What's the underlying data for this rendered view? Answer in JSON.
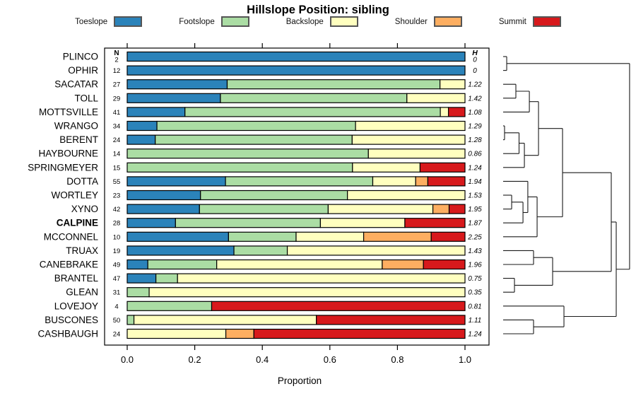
{
  "title": "Hillslope Position: sibling",
  "x_axis_label": "Proportion",
  "n_column_header": "N",
  "h_column_header": "H",
  "colors": {
    "toeslope": "#2B83BA",
    "footslope": "#ABDDA4",
    "backslope": "#FFFFBF",
    "shoulder": "#FDAE61",
    "summit": "#D7191C"
  },
  "legend": [
    {
      "label": "Toeslope",
      "color": "#2B83BA"
    },
    {
      "label": "Footslope",
      "color": "#ABDDA4"
    },
    {
      "label": "Backslope",
      "color": "#FFFFBF"
    },
    {
      "label": "Shoulder",
      "color": "#FDAE61"
    },
    {
      "label": "Summit",
      "color": "#D7191C"
    }
  ],
  "chart_data": {
    "type": "bar",
    "stacked": true,
    "orientation": "horizontal",
    "title": "Hillslope Position: sibling",
    "xlabel": "Proportion",
    "xlim": [
      0,
      1
    ],
    "xtick_labels": [
      "0.0",
      "0.2",
      "0.4",
      "0.6",
      "0.8",
      "1.0"
    ],
    "xtick_values": [
      0,
      0.2,
      0.4,
      0.6,
      0.8,
      1.0
    ],
    "series_names": [
      "Toeslope",
      "Footslope",
      "Backslope",
      "Shoulder",
      "Summit"
    ],
    "rows": [
      {
        "label": "PLINCO",
        "n": 2,
        "h": "0",
        "bold": false,
        "values": [
          1,
          0,
          0,
          0,
          0
        ]
      },
      {
        "label": "OPHIR",
        "n": 12,
        "h": "0",
        "bold": false,
        "values": [
          1,
          0,
          0,
          0,
          0
        ]
      },
      {
        "label": "SACATAR",
        "n": 27,
        "h": "1.22",
        "bold": false,
        "values": [
          0.296,
          0.63,
          0.074,
          0,
          0
        ]
      },
      {
        "label": "TOLL",
        "n": 29,
        "h": "1.42",
        "bold": false,
        "values": [
          0.276,
          0.552,
          0.172,
          0,
          0
        ]
      },
      {
        "label": "MOTTSVILLE",
        "n": 41,
        "h": "1.08",
        "bold": false,
        "values": [
          0.171,
          0.756,
          0.024,
          0,
          0.049
        ]
      },
      {
        "label": "WRANGO",
        "n": 34,
        "h": "1.29",
        "bold": false,
        "values": [
          0.088,
          0.588,
          0.324,
          0,
          0
        ]
      },
      {
        "label": "BERENT",
        "n": 24,
        "h": "1.28",
        "bold": false,
        "values": [
          0.083,
          0.583,
          0.334,
          0,
          0
        ]
      },
      {
        "label": "HAYBOURNE",
        "n": 14,
        "h": "0.86",
        "bold": false,
        "values": [
          0,
          0.714,
          0.286,
          0,
          0
        ]
      },
      {
        "label": "SPRINGMEYER",
        "n": 15,
        "h": "1.24",
        "bold": false,
        "values": [
          0,
          0.667,
          0.2,
          0,
          0.133
        ]
      },
      {
        "label": "DOTTA",
        "n": 55,
        "h": "1.94",
        "bold": false,
        "values": [
          0.291,
          0.436,
          0.127,
          0.036,
          0.11
        ]
      },
      {
        "label": "WORTLEY",
        "n": 23,
        "h": "1.53",
        "bold": false,
        "values": [
          0.217,
          0.435,
          0.348,
          0,
          0
        ]
      },
      {
        "label": "XYNO",
        "n": 42,
        "h": "1.95",
        "bold": false,
        "values": [
          0.214,
          0.381,
          0.31,
          0.048,
          0.047
        ]
      },
      {
        "label": "CALPINE",
        "n": 28,
        "h": "1.87",
        "bold": true,
        "values": [
          0.143,
          0.429,
          0.25,
          0,
          0.178
        ]
      },
      {
        "label": "MCCONNEL",
        "n": 10,
        "h": "2.25",
        "bold": false,
        "values": [
          0.3,
          0.2,
          0.2,
          0.2,
          0.1
        ]
      },
      {
        "label": "TRUAX",
        "n": 19,
        "h": "1.43",
        "bold": false,
        "values": [
          0.316,
          0.158,
          0.526,
          0,
          0
        ]
      },
      {
        "label": "CANEBRAKE",
        "n": 49,
        "h": "1.96",
        "bold": false,
        "values": [
          0.061,
          0.204,
          0.49,
          0.122,
          0.123
        ]
      },
      {
        "label": "BRANTEL",
        "n": 47,
        "h": "0.75",
        "bold": false,
        "values": [
          0.085,
          0.064,
          0.851,
          0,
          0
        ]
      },
      {
        "label": "GLEAN",
        "n": 31,
        "h": "0.35",
        "bold": false,
        "values": [
          0,
          0.065,
          0.935,
          0,
          0
        ]
      },
      {
        "label": "LOVEJOY",
        "n": 4,
        "h": "0.81",
        "bold": false,
        "values": [
          0,
          0.25,
          0,
          0,
          0.75
        ]
      },
      {
        "label": "BUSCONES",
        "n": 50,
        "h": "1.11",
        "bold": false,
        "values": [
          0,
          0.02,
          0.54,
          0,
          0.44
        ]
      },
      {
        "label": "CASHBAUGH",
        "n": 24,
        "h": "1.24",
        "bold": false,
        "values": [
          0,
          0,
          0.292,
          0.083,
          0.625
        ]
      }
    ]
  },
  "dendrogram": {
    "tree": {
      "d": 0.994,
      "c": [
        {
          "d": 0.028,
          "c": [
            0,
            1
          ]
        },
        {
          "d": 0.889,
          "c": [
            {
              "d": 0.85,
              "c": [
                {
                  "d": 0.467,
                  "c": [
                    {
                      "d": 0.278,
                      "c": [
                        {
                          "d": 0.206,
                          "c": [
                            {
                              "d": 0.1,
                              "c": [
                                2,
                                3
                              ]
                            },
                            4
                          ]
                        },
                        {
                          "d": 0.167,
                          "c": [
                            {
                              "d": 0.125,
                              "c": [
                                {
                                  "d": 0.011,
                                  "c": [
                                    5,
                                    6
                                  ]
                                },
                                7
                              ]
                            },
                            8
                          ]
                        }
                      ]
                    },
                    {
                      "d": 0.267,
                      "c": [
                        {
                          "d": 0.194,
                          "c": [
                            9,
                            {
                              "d": 0.156,
                              "c": [
                                {
                                  "d": 0.067,
                                  "c": [
                                    10,
                                    11
                                  ]
                                },
                                12
                              ]
                            }
                          ]
                        },
                        13
                      ]
                    }
                  ]
                },
                {
                  "d": 0.389,
                  "c": [
                    {
                      "d": 0.239,
                      "c": [
                        14,
                        15
                      ]
                    },
                    {
                      "d": 0.089,
                      "c": [
                        16,
                        17
                      ]
                    }
                  ]
                }
              ]
            },
            {
              "d": 0.478,
              "c": [
                18,
                {
                  "d": 0.239,
                  "c": [
                    19,
                    20
                  ]
                }
              ]
            }
          ]
        }
      ]
    }
  }
}
